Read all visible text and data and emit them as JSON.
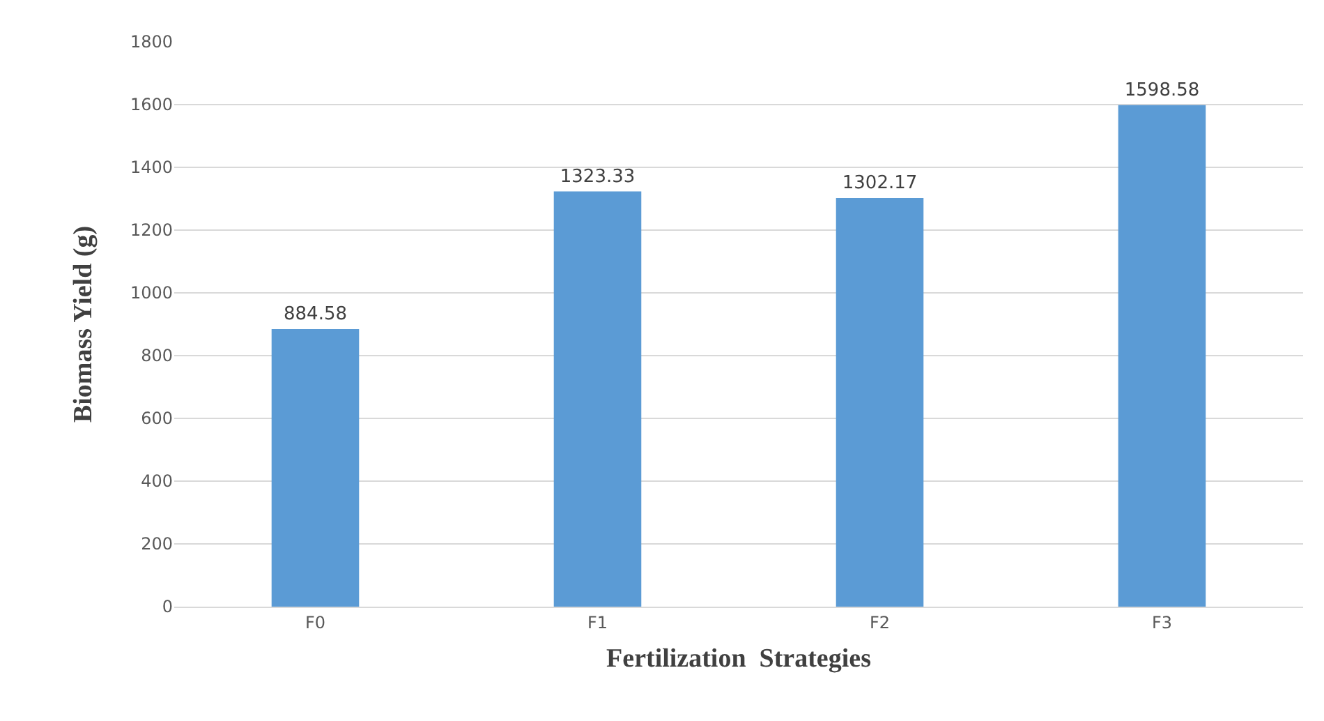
{
  "chart_data": {
    "type": "bar",
    "xlabel": "Fertilization  Strategies",
    "ylabel": "Biomass Yield (g)",
    "categories": [
      "F0",
      "F1",
      "F2",
      "F3"
    ],
    "values": [
      884.58,
      1323.33,
      1302.17,
      1598.58
    ],
    "color": "#5b9bd5",
    "ylim": [
      0,
      1800
    ],
    "yticks": [
      0,
      200,
      400,
      600,
      800,
      1000,
      1200,
      1400,
      1600,
      1800
    ],
    "grid": "y",
    "data_labels": true
  }
}
